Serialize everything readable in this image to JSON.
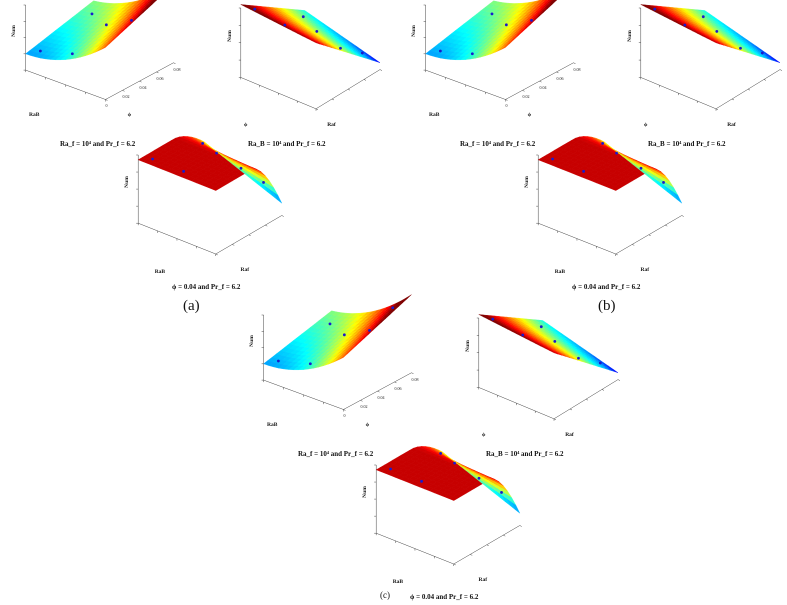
{
  "caption_a": "Ra_f = 10⁴ and Pr_f = 6.2",
  "caption_b": "Ra_B = 10⁴ and Pr_f = 6.2",
  "caption_c": "ϕ = 0.04 and Pr_f = 6.2",
  "panel_labels": [
    "(a)",
    "(b)",
    "(c)"
  ],
  "axis": {
    "nu": "Nu",
    "nu_sub": "m",
    "raB": "Ra",
    "raB_sub": "B",
    "raf": "Ra",
    "raf_sub": "f",
    "phi": "ϕ"
  },
  "phi_ticks": [
    "0",
    "0.02",
    "0.04",
    "0.06",
    "0.08"
  ],
  "colormap": [
    "#00007f",
    "#0000ff",
    "#00a0ff",
    "#00ffff",
    "#7fff7f",
    "#ffff00",
    "#ff7f00",
    "#ff0000",
    "#7f0000"
  ]
}
